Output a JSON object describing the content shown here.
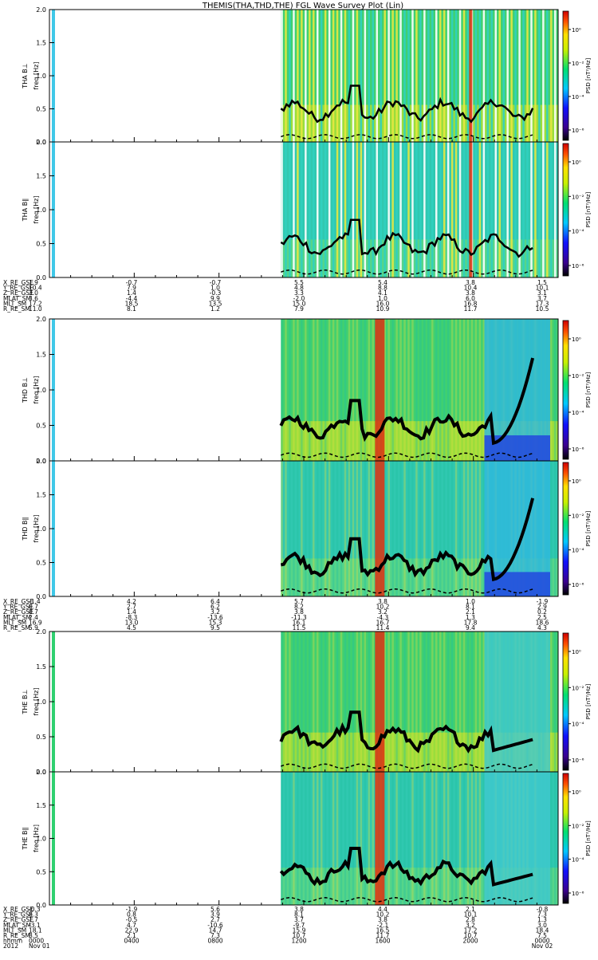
{
  "title": "THEMIS(THA,THD,THE) FGL Wave Survey Plot (Lin)",
  "colorbar_label": "PSD [nT²/Hz]",
  "chart_data": {
    "type": "heatmap",
    "freq_tick_labels": [
      "0.0",
      "0.5",
      "1.0",
      "1.5",
      "2.0"
    ],
    "freq_range": [
      0,
      2.0
    ],
    "cbar_ticks_a": [
      "10⁰",
      "10⁻²",
      "10⁻⁴",
      "10⁻⁶"
    ],
    "cbar_ticks_b": [
      "10⁰",
      "10⁻²",
      "10⁻⁴",
      "10⁻⁶"
    ],
    "panels": [
      {
        "ylabel": "THA B⊥",
        "freq_label": "freq [Hz]",
        "probe": "a",
        "comp": "perp"
      },
      {
        "ylabel": "THA B∥",
        "freq_label": "freq [Hz]",
        "probe": "a",
        "comp": "par"
      },
      {
        "ylabel": "THD B⊥",
        "freq_label": "freq [Hz]",
        "probe": "d",
        "comp": "perp"
      },
      {
        "ylabel": "THD B∥",
        "freq_label": "freq [Hz]",
        "probe": "d",
        "comp": "par"
      },
      {
        "ylabel": "THE B⊥",
        "freq_label": "freq [Hz]",
        "probe": "e",
        "comp": "perp"
      },
      {
        "ylabel": "THE B∥",
        "freq_label": "freq [Hz]",
        "probe": "e",
        "comp": "par"
      }
    ],
    "ephemeris": [
      {
        "labels": [
          "X_RE_GSE",
          "Y_RE_GSE",
          "Z_RE_GSE",
          "MLAT_SM",
          "MLT_SM",
          "R_RE_SM"
        ],
        "columns": [
          [
            "1.9",
            "10.4",
            "3.0",
            "3.6",
            "17.2",
            "11.0"
          ],
          [
            "-0.7",
            "7.9",
            "1.4",
            "-4.4",
            "18.5",
            "8.1"
          ],
          [
            "-0.7",
            "1.0",
            "-0.3",
            "9.9",
            "13.5",
            "1.2"
          ],
          [
            "5.5",
            "4.8",
            "3.3",
            "-2.0",
            "15.0",
            "7.9"
          ],
          [
            "5.4",
            "8.8",
            "4.1",
            "1.0",
            "16.0",
            "10.9"
          ],
          [
            "3.8",
            "10.4",
            "3.8",
            "6.0",
            "16.8",
            "11.7"
          ],
          [
            "1.5",
            "10.1",
            "3.1",
            "3.7",
            "17.3",
            "10.5"
          ]
        ]
      },
      {
        "labels": [
          "X_RE_GSE",
          "Y_RE_GSE",
          "Z_RE_GSE",
          "MLAT_SM",
          "MLT_SM",
          "R_RE_SM"
        ],
        "columns": [
          [
            "-1.4",
            "0.7",
            "0.7",
            "2.4",
            "16.9",
            "5.9"
          ],
          [
            "4.2",
            "2.7",
            "1.4",
            "-8.3",
            "13.0",
            "4.5"
          ],
          [
            "6.4",
            "6.2",
            "3.2",
            "-13.6",
            "15.3",
            "9.5"
          ],
          [
            "5.7",
            "8.2",
            "3.8",
            "-11.3",
            "16.1",
            "11.5"
          ],
          [
            "3.8",
            "10.2",
            "3.2",
            "-4.3",
            "16.7",
            "11.4"
          ],
          [
            "1.0",
            "8.1",
            "2.1",
            "1.3",
            "17.8",
            "9.4"
          ],
          [
            "-1.9",
            "2.9",
            "0.2",
            "2.5",
            "18.6",
            "4.3"
          ]
        ]
      },
      {
        "labels": [
          "X_RE_GSE",
          "Y_RE_GSE",
          "Z_RE_GSE",
          "MLAT_SM",
          "MLT_SM",
          "R_RE_SM",
          "hhmm",
          "2012"
        ],
        "columns": [
          [
            "-0.3",
            "8.3",
            "1.7",
            "-3.1",
            "18.1",
            "8.5",
            "0000",
            "Nov 01"
          ],
          [
            "-1.9",
            "0.8",
            "-0.5",
            "4.7",
            "22.9",
            "2.1",
            "0400",
            ""
          ],
          [
            "5.6",
            "3.9",
            "2.7",
            "-10.6",
            "14.7",
            "7.3",
            "0800",
            ""
          ],
          [
            "3.8",
            "8.1",
            "3.7",
            "-9.7",
            "15.9",
            "10.7",
            "1200",
            ""
          ],
          [
            "4.4",
            "10.2",
            "3.8",
            "-2.1",
            "16.5",
            "11.7",
            "1600",
            ""
          ],
          [
            "2.1",
            "10.1",
            "2.8",
            "3.2",
            "17.2",
            "10.7",
            "2000",
            ""
          ],
          [
            "-0.8",
            "7.3",
            "1.3",
            "3.0",
            "18.4",
            "7.5",
            "0000",
            "Nov 02"
          ]
        ]
      }
    ]
  }
}
